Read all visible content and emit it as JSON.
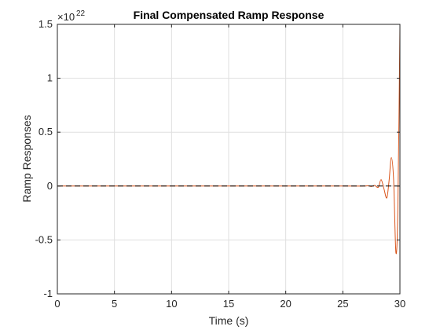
{
  "chart_data": {
    "type": "line",
    "title": "Final Compensated Ramp Response",
    "xlabel": "Time (s)",
    "ylabel": "Ramp Responses",
    "xlim": [
      0,
      30
    ],
    "ylim": [
      -1,
      1.5
    ],
    "y_exponent_base": "×10",
    "y_exponent_power": "22",
    "x_ticks": [
      0,
      5,
      10,
      15,
      20,
      25,
      30
    ],
    "x_tick_labels": [
      "0",
      "5",
      "10",
      "15",
      "20",
      "25",
      "30"
    ],
    "y_ticks": [
      -1,
      -0.5,
      0,
      0.5,
      1,
      1.5
    ],
    "y_tick_labels": [
      "-1",
      "-0.5",
      "0",
      "0.5",
      "1",
      "1.5"
    ],
    "grid": true,
    "series": [
      {
        "style": "solid",
        "color": "#d95319",
        "x": [
          0,
          5,
          10,
          15,
          20,
          25,
          26.8,
          27.2,
          27.5,
          27.8,
          28.1,
          28.35,
          28.6,
          28.85,
          29.05,
          29.25,
          29.45,
          29.65,
          29.82,
          30
        ],
        "y": [
          0,
          0,
          0,
          0,
          0,
          0,
          0,
          0.003,
          -0.004,
          0.006,
          -0.012,
          0.06,
          -0.025,
          -0.11,
          0.05,
          0.265,
          0.05,
          -0.62,
          -0.2,
          1.47
        ]
      },
      {
        "style": "dashed",
        "color": "#000000",
        "x": [
          0,
          30
        ],
        "y": [
          0,
          0
        ]
      }
    ]
  }
}
